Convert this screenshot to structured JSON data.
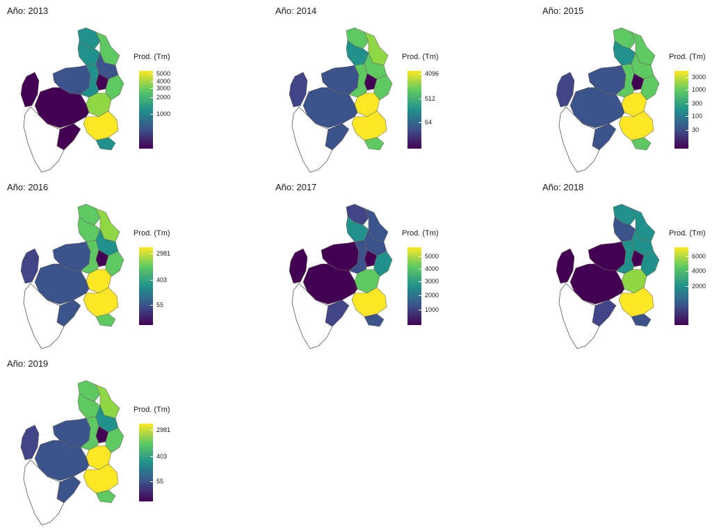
{
  "legend_title": "Prod. (Tm)",
  "colors": {
    "yellow": "#fde725",
    "lightgreen": "#8fd744",
    "green": "#5ec962",
    "teal": "#21918c",
    "blue": "#3b528b",
    "darkblue": "#414487",
    "purple": "#440154"
  },
  "panels": [
    {
      "title": "Año: 2013",
      "ticks": [
        "5000",
        "4000",
        "3000",
        "2000",
        "1000"
      ],
      "tick_positions": [
        0.04,
        0.13,
        0.22,
        0.34,
        0.55
      ],
      "region_colors": {
        "north_top": "teal",
        "north_right": "green",
        "north_mid": "teal",
        "north_mid2": "blue",
        "center_left": "blue",
        "center_right": "teal",
        "center_core": "purple",
        "east": "green",
        "south_mid": "lightgreen",
        "south_big": "yellow",
        "south_tip": "teal",
        "west_island": "purple",
        "west_coast": "purple",
        "southwest_strip": "purple"
      }
    },
    {
      "title": "Año: 2014",
      "ticks": [
        "4096",
        "512",
        "64"
      ],
      "tick_positions": [
        0.04,
        0.36,
        0.66
      ],
      "region_colors": {
        "north_top": "green",
        "north_right": "lightgreen",
        "north_mid": "teal",
        "north_mid2": "green",
        "center_left": "blue",
        "center_right": "green",
        "center_core": "purple",
        "east": "green",
        "south_mid": "yellow",
        "south_big": "yellow",
        "south_tip": "green",
        "west_island": "darkblue",
        "west_coast": "blue",
        "southwest_strip": "blue"
      }
    },
    {
      "title": "Año: 2015",
      "ticks": [
        "3000",
        "1000",
        "300",
        "100",
        "30"
      ],
      "tick_positions": [
        0.08,
        0.24,
        0.42,
        0.58,
        0.76
      ],
      "region_colors": {
        "north_top": "green",
        "north_right": "green",
        "north_mid": "teal",
        "north_mid2": "green",
        "center_left": "blue",
        "center_right": "green",
        "center_core": "purple",
        "east": "green",
        "south_mid": "yellow",
        "south_big": "yellow",
        "south_tip": "green",
        "west_island": "darkblue",
        "west_coast": "blue",
        "southwest_strip": "blue"
      }
    },
    {
      "title": "Año: 2016",
      "ticks": [
        "2981",
        "403",
        "55"
      ],
      "tick_positions": [
        0.08,
        0.42,
        0.74
      ],
      "region_colors": {
        "north_top": "green",
        "north_right": "lightgreen",
        "north_mid": "green",
        "north_mid2": "teal",
        "center_left": "blue",
        "center_right": "green",
        "center_core": "purple",
        "east": "green",
        "south_mid": "yellow",
        "south_big": "yellow",
        "south_tip": "green",
        "west_island": "darkblue",
        "west_coast": "blue",
        "southwest_strip": "blue"
      }
    },
    {
      "title": "Año: 2017",
      "ticks": [
        "5000",
        "4000",
        "3000",
        "2000",
        "1000"
      ],
      "tick_positions": [
        0.12,
        0.28,
        0.44,
        0.62,
        0.8
      ],
      "region_colors": {
        "north_top": "darkblue",
        "north_right": "blue",
        "north_mid": "teal",
        "north_mid2": "blue",
        "center_left": "purple",
        "center_right": "blue",
        "center_core": "purple",
        "east": "teal",
        "south_mid": "green",
        "south_big": "yellow",
        "south_tip": "blue",
        "west_island": "purple",
        "west_coast": "purple",
        "southwest_strip": "darkblue"
      }
    },
    {
      "title": "Año: 2018",
      "ticks": [
        "6000",
        "4000",
        "2000"
      ],
      "tick_positions": [
        0.12,
        0.3,
        0.5
      ],
      "region_colors": {
        "north_top": "teal",
        "north_right": "teal",
        "north_mid": "blue",
        "north_mid2": "teal",
        "center_left": "purple",
        "center_right": "teal",
        "center_core": "purple",
        "east": "teal",
        "south_mid": "lightgreen",
        "south_big": "yellow",
        "south_tip": "blue",
        "west_island": "purple",
        "west_coast": "purple",
        "southwest_strip": "darkblue"
      }
    },
    {
      "title": "Año: 2019",
      "ticks": [
        "2981",
        "403",
        "55"
      ],
      "tick_positions": [
        0.08,
        0.42,
        0.74
      ],
      "region_colors": {
        "north_top": "green",
        "north_right": "lightgreen",
        "north_mid": "green",
        "north_mid2": "teal",
        "center_left": "blue",
        "center_right": "green",
        "center_core": "purple",
        "east": "green",
        "south_mid": "yellow",
        "south_big": "yellow",
        "south_tip": "green",
        "west_island": "darkblue",
        "west_coast": "blue",
        "southwest_strip": "blue"
      }
    }
  ]
}
